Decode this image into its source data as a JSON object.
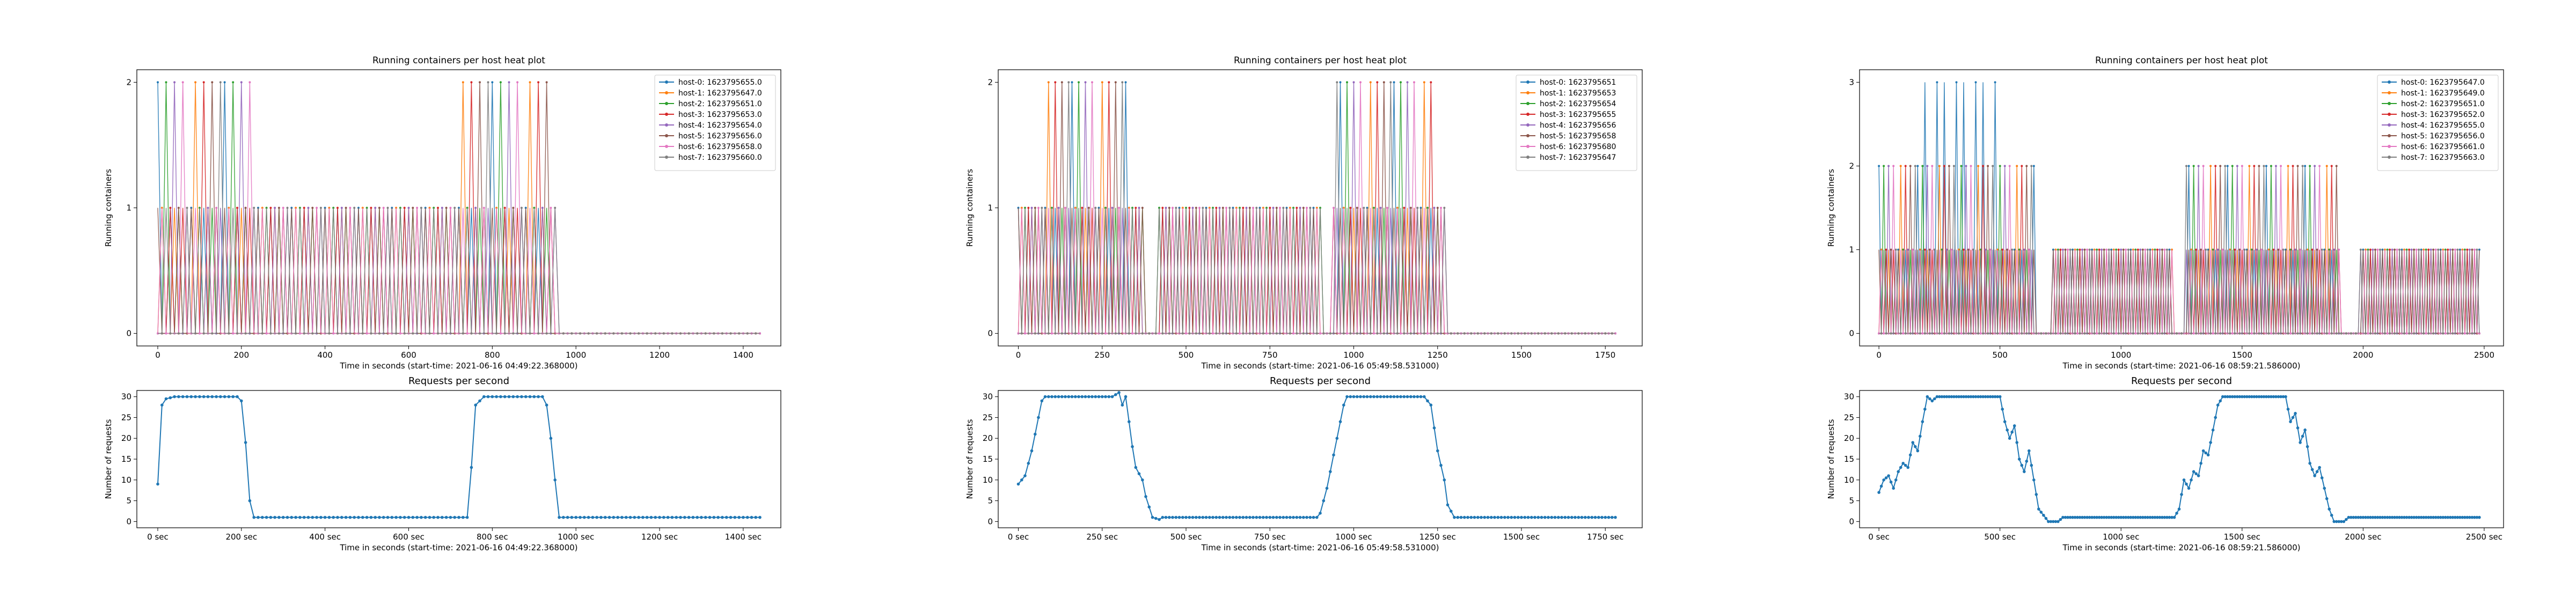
{
  "palette": [
    "#1f77b4",
    "#ff7f0e",
    "#2ca02c",
    "#d62728",
    "#9467bd",
    "#8c564b",
    "#e377c2",
    "#7f7f7f"
  ],
  "request_color": "#1f77b4",
  "chart_data": [
    {
      "type": "line",
      "title": "Running containers per host heat plot",
      "ylabel": "Running containers",
      "xlabel": "Time in seconds (start-time: 2021-06-16 04:49:22.368000)",
      "xlim": [
        -50,
        1490
      ],
      "ylim": [
        -0.1,
        2.1
      ],
      "xticks": [
        0,
        200,
        400,
        600,
        800,
        1000,
        1200,
        1400
      ],
      "yticks": [
        0,
        1,
        2
      ],
      "xtick_labels": [
        "0",
        "200",
        "400",
        "600",
        "800",
        "1000",
        "1200",
        "1400"
      ],
      "ytick_labels": [
        "0",
        "1",
        "2"
      ],
      "legend": "top-right",
      "series": [
        {
          "name": "host-0: 1623795655.0"
        },
        {
          "name": "host-1: 1623795647.0"
        },
        {
          "name": "host-2: 1623795651.0"
        },
        {
          "name": "host-3: 1623795653.0"
        },
        {
          "name": "host-4: 1623795654.0"
        },
        {
          "name": "host-5: 1623795656.0"
        },
        {
          "name": "host-6: 1623795658.0"
        },
        {
          "name": "host-7: 1623795660.0"
        }
      ],
      "active_periods": [
        [
          0,
          225
        ],
        [
          225,
          950
        ]
      ],
      "peak_periods": [
        [
          0,
          220
        ],
        [
          730,
          945
        ]
      ],
      "x_end": 1440,
      "step": 10,
      "max": 2
    },
    {
      "type": "line",
      "title": "Requests per second",
      "ylabel": "Number of requests",
      "xlabel": "Time in seconds (start-time: 2021-06-16 04:49:22.368000)",
      "xlim": [
        -50,
        1490
      ],
      "ylim": [
        -1.5,
        31.5
      ],
      "xticks": [
        0,
        200,
        400,
        600,
        800,
        1000,
        1200,
        1400
      ],
      "yticks": [
        0,
        5,
        10,
        15,
        20,
        25,
        30
      ],
      "xtick_labels": [
        "0 sec",
        "200 sec",
        "400 sec",
        "600 sec",
        "800 sec",
        "1000 sec",
        "1200 sec",
        "1400 sec"
      ],
      "ytick_labels": [
        "0",
        "5",
        "10",
        "15",
        "20",
        "25",
        "30"
      ],
      "x_end": 1440,
      "step": 10,
      "keypoints": [
        [
          0,
          9
        ],
        [
          10,
          28
        ],
        [
          20,
          29.5
        ],
        [
          40,
          30
        ],
        [
          190,
          30
        ],
        [
          200,
          29
        ],
        [
          210,
          19
        ],
        [
          220,
          5
        ],
        [
          230,
          1
        ],
        [
          740,
          1
        ],
        [
          750,
          13
        ],
        [
          760,
          28
        ],
        [
          780,
          30
        ],
        [
          920,
          30
        ],
        [
          930,
          28
        ],
        [
          940,
          20
        ],
        [
          950,
          10
        ],
        [
          960,
          1
        ],
        [
          1440,
          1
        ]
      ]
    },
    {
      "type": "line",
      "title": "Running containers per host heat plot",
      "ylabel": "Running containers",
      "xlabel": "Time in seconds (start-time: 2021-06-16 05:49:58.531000)",
      "xlim": [
        -60,
        1860
      ],
      "ylim": [
        -0.1,
        2.1
      ],
      "xticks": [
        0,
        250,
        500,
        750,
        1000,
        1250,
        1500,
        1750
      ],
      "yticks": [
        0,
        1,
        2
      ],
      "xtick_labels": [
        "0",
        "250",
        "500",
        "750",
        "1000",
        "1250",
        "1500",
        "1750"
      ],
      "ytick_labels": [
        "0",
        "1",
        "2"
      ],
      "legend": "top-right",
      "series": [
        {
          "name": "host-0: 1623795651"
        },
        {
          "name": "host-1: 1623795653"
        },
        {
          "name": "host-2: 1623795654"
        },
        {
          "name": "host-3: 1623795655"
        },
        {
          "name": "host-4: 1623795656"
        },
        {
          "name": "host-5: 1623795658"
        },
        {
          "name": "host-6: 1623795680"
        },
        {
          "name": "host-7: 1623795647"
        }
      ],
      "active_periods": [
        [
          0,
          375
        ],
        [
          420,
          900
        ],
        [
          935,
          1275
        ]
      ],
      "peak_periods": [
        [
          80,
          330
        ],
        [
          940,
          1230
        ]
      ],
      "x_end": 1780,
      "step": 10,
      "max": 2
    },
    {
      "type": "line",
      "title": "Requests per second",
      "ylabel": "Number of requests",
      "xlabel": "Time in seconds (start-time: 2021-06-16 05:49:58.531000)",
      "xlim": [
        -60,
        1860
      ],
      "ylim": [
        -1.5,
        31.5
      ],
      "xticks": [
        0,
        250,
        500,
        750,
        1000,
        1250,
        1500,
        1750
      ],
      "yticks": [
        0,
        5,
        10,
        15,
        20,
        25,
        30
      ],
      "xtick_labels": [
        "0 sec",
        "250 sec",
        "500 sec",
        "750 sec",
        "1000 sec",
        "1250 sec",
        "1500 sec",
        "1750 sec"
      ],
      "ytick_labels": [
        "0",
        "5",
        "10",
        "15",
        "20",
        "25",
        "30"
      ],
      "x_end": 1780,
      "step": 10,
      "keypoints": [
        [
          0,
          9
        ],
        [
          20,
          11
        ],
        [
          40,
          17
        ],
        [
          60,
          25
        ],
        [
          70,
          29
        ],
        [
          80,
          30
        ],
        [
          280,
          30
        ],
        [
          300,
          31
        ],
        [
          310,
          28
        ],
        [
          320,
          30
        ],
        [
          330,
          24
        ],
        [
          340,
          18
        ],
        [
          350,
          13
        ],
        [
          370,
          10
        ],
        [
          380,
          6
        ],
        [
          400,
          1
        ],
        [
          420,
          0.5
        ],
        [
          430,
          1
        ],
        [
          890,
          1
        ],
        [
          900,
          2
        ],
        [
          920,
          8
        ],
        [
          940,
          16
        ],
        [
          960,
          24
        ],
        [
          970,
          28
        ],
        [
          980,
          30
        ],
        [
          1210,
          30
        ],
        [
          1230,
          28
        ],
        [
          1250,
          17
        ],
        [
          1270,
          10
        ],
        [
          1280,
          4
        ],
        [
          1300,
          1
        ],
        [
          1780,
          1
        ]
      ]
    },
    {
      "type": "line",
      "title": "Running containers per host heat plot",
      "ylabel": "Running containers",
      "xlabel": "Time in seconds (start-time: 2021-06-16 08:59:21.586000)",
      "xlim": [
        -80,
        2580
      ],
      "ylim": [
        -0.15,
        3.15
      ],
      "xticks": [
        0,
        500,
        1000,
        1500,
        2000,
        2500
      ],
      "yticks": [
        0,
        1,
        2,
        3
      ],
      "xtick_labels": [
        "0",
        "500",
        "1000",
        "1500",
        "2000",
        "2500"
      ],
      "ytick_labels": [
        "0",
        "1",
        "2",
        "3"
      ],
      "legend": "top-right",
      "series": [
        {
          "name": "host-0: 1623795647.0"
        },
        {
          "name": "host-1: 1623795649.0"
        },
        {
          "name": "host-2: 1623795651.0"
        },
        {
          "name": "host-3: 1623795652.0"
        },
        {
          "name": "host-4: 1623795655.0"
        },
        {
          "name": "host-5: 1623795656.0"
        },
        {
          "name": "host-6: 1623795661.0"
        },
        {
          "name": "host-7: 1623795663.0"
        }
      ],
      "active_periods": [
        [
          0,
          640
        ],
        [
          720,
          1215
        ],
        [
          1270,
          1905
        ],
        [
          1985,
          2480
        ]
      ],
      "peak_periods": [
        [
          0,
          640
        ],
        [
          1270,
          1905
        ]
      ],
      "peak3_periods": [
        [
          105,
          540
        ]
      ],
      "x_end": 2480,
      "step": 10,
      "max": 3
    },
    {
      "type": "line",
      "title": "Requests per second",
      "ylabel": "Number of requests",
      "xlabel": "Time in seconds (start-time: 2021-06-16 08:59:21.586000)",
      "xlim": [
        -80,
        2580
      ],
      "ylim": [
        -1.5,
        31.5
      ],
      "xticks": [
        0,
        500,
        1000,
        1500,
        2000,
        2500
      ],
      "yticks": [
        0,
        5,
        10,
        15,
        20,
        25,
        30
      ],
      "xtick_labels": [
        "0 sec",
        "500 sec",
        "1000 sec",
        "1500 sec",
        "2000 sec",
        "2500 sec"
      ],
      "ytick_labels": [
        "0",
        "5",
        "10",
        "15",
        "20",
        "25",
        "30"
      ],
      "x_end": 2480,
      "step": 10,
      "keypoints": [
        [
          0,
          7
        ],
        [
          20,
          10
        ],
        [
          40,
          11
        ],
        [
          60,
          8
        ],
        [
          80,
          12
        ],
        [
          100,
          14
        ],
        [
          120,
          13
        ],
        [
          140,
          19
        ],
        [
          160,
          17
        ],
        [
          180,
          24
        ],
        [
          200,
          30
        ],
        [
          220,
          29
        ],
        [
          240,
          30
        ],
        [
          500,
          30
        ],
        [
          520,
          24
        ],
        [
          540,
          20
        ],
        [
          560,
          23
        ],
        [
          580,
          15
        ],
        [
          600,
          12
        ],
        [
          620,
          17
        ],
        [
          640,
          10
        ],
        [
          660,
          3
        ],
        [
          700,
          0
        ],
        [
          740,
          0
        ],
        [
          760,
          1
        ],
        [
          1220,
          1
        ],
        [
          1240,
          3
        ],
        [
          1260,
          10
        ],
        [
          1280,
          8
        ],
        [
          1300,
          12
        ],
        [
          1320,
          11
        ],
        [
          1340,
          17
        ],
        [
          1360,
          16
        ],
        [
          1380,
          22
        ],
        [
          1400,
          28
        ],
        [
          1420,
          30
        ],
        [
          1680,
          30
        ],
        [
          1700,
          24
        ],
        [
          1720,
          26
        ],
        [
          1740,
          19
        ],
        [
          1760,
          22
        ],
        [
          1780,
          14
        ],
        [
          1800,
          11
        ],
        [
          1820,
          13
        ],
        [
          1840,
          8
        ],
        [
          1860,
          3
        ],
        [
          1880,
          0
        ],
        [
          1920,
          0
        ],
        [
          1940,
          1
        ],
        [
          2480,
          1
        ]
      ]
    }
  ]
}
